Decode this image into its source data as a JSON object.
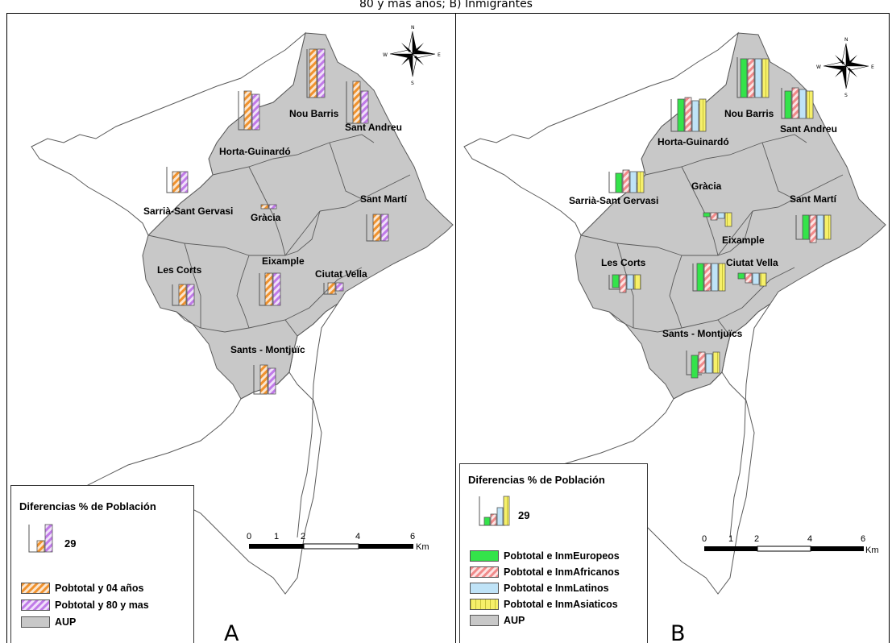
{
  "figure": {
    "caption_fragment": "80 y más años; B) Inmigrantes"
  },
  "colors": {
    "aup_fill": "#c8c8c8",
    "outline": "#5a5a5a",
    "orange": "#f0922e",
    "purple": "#c07ae8",
    "green": "#34e34a",
    "red": "#f08a8a",
    "light_blue": "#bfe3f7",
    "yellow": "#f6f06a"
  },
  "panel_a": {
    "letter": "A",
    "districts": [
      "Nou Barris",
      "Sant Andreu",
      "Horta-Guinardó",
      "Sarrià-Sant Gervasi",
      "Gràcia",
      "Sant Martí",
      "Les Corts",
      "Eixample",
      "Ciutat Vella",
      "Sants - Montjuïc"
    ],
    "legend": {
      "title": "Diferencias % de Población",
      "sample_value": "29",
      "items": [
        {
          "label": "Pobtotal y 04 años",
          "pattern": "orange-hatch"
        },
        {
          "label": "Pobtotal y 80 y mas",
          "pattern": "purple-hatch"
        },
        {
          "label": "AUP",
          "pattern": "grey-fill"
        }
      ]
    },
    "scale": {
      "ticks": [
        "0",
        "1",
        "2",
        "4",
        "6"
      ],
      "unit": "Km"
    },
    "north_arrow": {
      "n": "N",
      "s": "S",
      "e": "E",
      "w": "W"
    }
  },
  "panel_b": {
    "letter": "B",
    "districts": [
      "Nou Barris",
      "Sant Andreu",
      "Horta-Guinardó",
      "Sarrià-Sant Gervasi",
      "Gràcia",
      "Sant Martí",
      "Eixample",
      "Les Corts",
      "Ciutat Vella",
      "Sants - Montjuïcs"
    ],
    "legend": {
      "title": "Diferencias % de Población",
      "sample_value": "29",
      "items": [
        {
          "label": "Pobtotal e InmEuropeos",
          "pattern": "green-fill"
        },
        {
          "label": "Pobtotal e InmAfricanos",
          "pattern": "red-hatch"
        },
        {
          "label": "Pobtotal e InmLatinos",
          "pattern": "blue-fill"
        },
        {
          "label": "Pobtotal e InmAsiaticos",
          "pattern": "yellow-hatch"
        },
        {
          "label": "AUP",
          "pattern": "grey-fill"
        }
      ]
    },
    "scale": {
      "ticks": [
        "0",
        "1",
        "2",
        "4",
        "6"
      ],
      "unit": "Km"
    },
    "north_arrow": {
      "n": "N",
      "s": "S",
      "e": "E",
      "w": "W"
    }
  }
}
